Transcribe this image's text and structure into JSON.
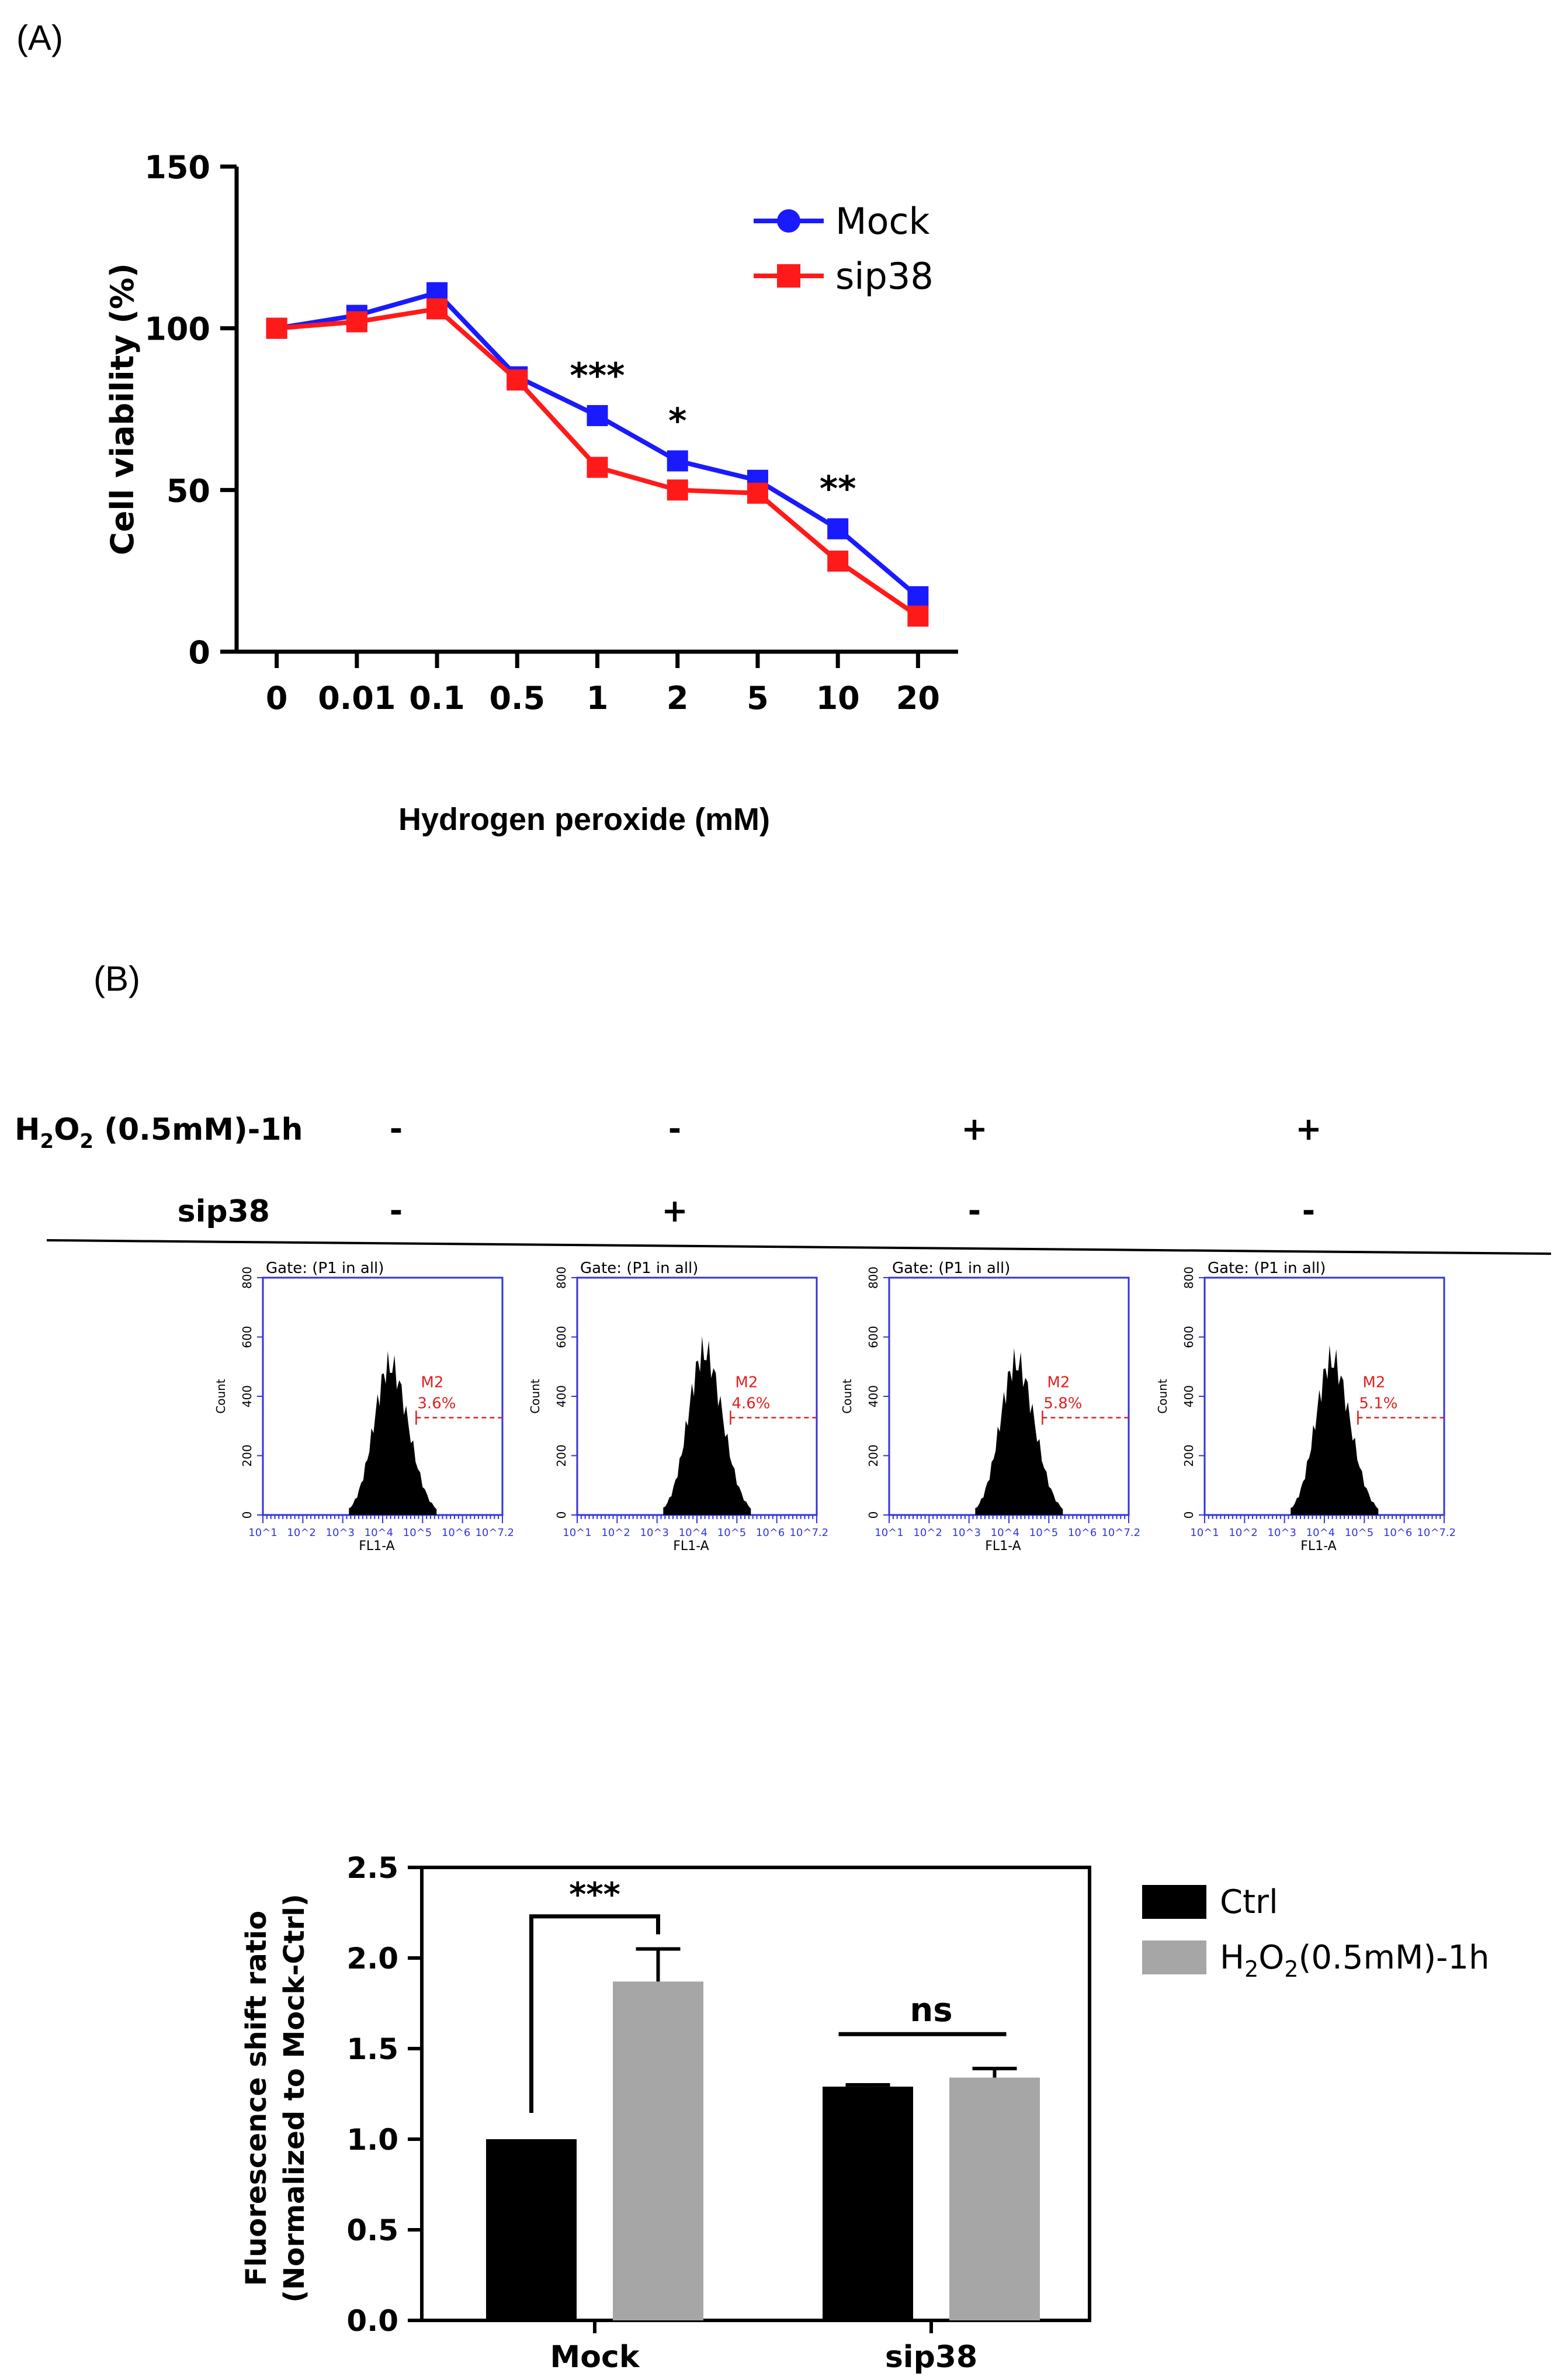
{
  "panels": {
    "a_label": "(A)",
    "b_label": "(B)"
  },
  "chart_data": [
    {
      "type": "line",
      "panel": "(A)",
      "categories": [
        "0",
        "0.01",
        "0.1",
        "0.5",
        "1",
        "2",
        "5",
        "10",
        "20"
      ],
      "series": [
        {
          "name": "Mock",
          "color": "#1a1aff",
          "values": [
            100,
            104,
            111,
            85,
            73,
            59,
            53,
            38,
            17
          ]
        },
        {
          "name": "sip38",
          "color": "#ff1a1a",
          "values": [
            100,
            102,
            106,
            84,
            57,
            50,
            49,
            28,
            11
          ]
        }
      ],
      "xlabel": "Hydrogen peroxide (mM)",
      "ylabel": "Cell viability (%)",
      "ylim": [
        0,
        150
      ],
      "yticks": [
        "0",
        "50",
        "100",
        "150"
      ],
      "annotations": [
        {
          "category": "1",
          "text": "***"
        },
        {
          "category": "2",
          "text": "*"
        },
        {
          "category": "10",
          "text": "**"
        }
      ],
      "grid": false,
      "legend": "top-right"
    },
    {
      "type": "histogram",
      "panel": "(B)",
      "conditions": {
        "row1_label": "H2O2 (0.5mM)-1h",
        "row2_label": "sip38",
        "row1_values": [
          "-",
          "-",
          "+",
          "+"
        ],
        "row2_values": [
          "-",
          "+",
          "-",
          "-"
        ]
      },
      "histograms": [
        {
          "gate": "Gate: (P1 in all)",
          "marker": "M2",
          "percent": "3.6%",
          "ylabel": "Count",
          "xlabel": "FL1-A",
          "peak": 560
        },
        {
          "gate": "Gate: (P1 in all)",
          "marker": "M2",
          "percent": "4.6%",
          "ylabel": "Count",
          "xlabel": "FL1-A",
          "peak": 610
        },
        {
          "gate": "Gate: (P1 in all)",
          "marker": "M2",
          "percent": "5.8%",
          "ylabel": "Count",
          "xlabel": "FL1-A",
          "peak": 570
        },
        {
          "gate": "Gate: (P1 in all)",
          "marker": "M2",
          "percent": "5.1%",
          "ylabel": "Count",
          "xlabel": "FL1-A",
          "peak": 580
        }
      ],
      "yticks": [
        "0",
        "200",
        "400",
        "600",
        "800"
      ],
      "xticks": [
        "10^1",
        "10^2",
        "10^3",
        "10^4",
        "10^5",
        "10^6",
        "10^7.2"
      ]
    },
    {
      "type": "bar",
      "panel": "(B)",
      "categories": [
        "Mock",
        "sip38"
      ],
      "series": [
        {
          "name": "Ctrl",
          "color": "#000000",
          "values": [
            1.0,
            1.29
          ],
          "errors": [
            0,
            0.01
          ]
        },
        {
          "name": "H2O2(0.5mM)-1h",
          "color": "#a6a6a6",
          "values": [
            1.87,
            1.34
          ],
          "errors": [
            0.18,
            0.05
          ]
        }
      ],
      "ylabel_line1": "Fluorescence shift ratio",
      "ylabel_line2": "(Normalized to  Mock-Ctrl)",
      "ylim": [
        0,
        2.5
      ],
      "yticks": [
        "0.0",
        "0.5",
        "1.0",
        "1.5",
        "2.0",
        "2.5"
      ],
      "significance": [
        {
          "group": "Mock",
          "text": "***"
        },
        {
          "group": "sip38",
          "text": "ns"
        }
      ],
      "grid": false,
      "legend": "right"
    }
  ]
}
